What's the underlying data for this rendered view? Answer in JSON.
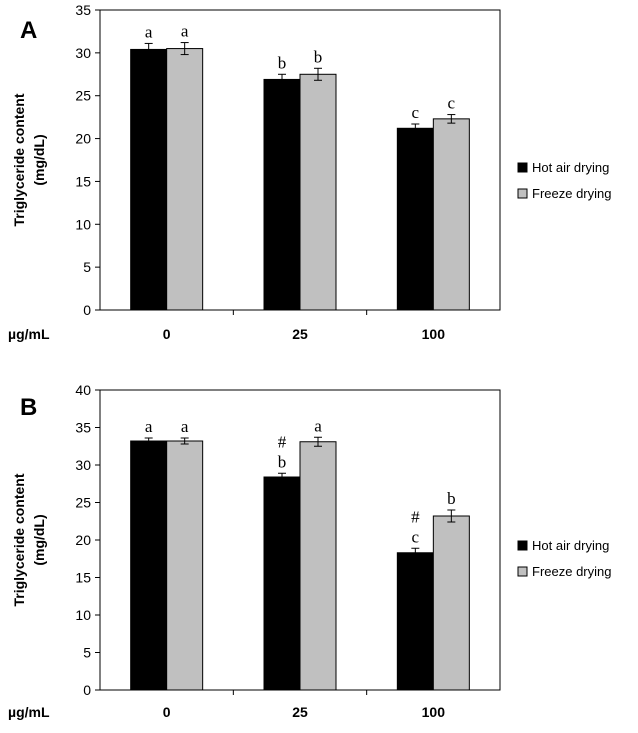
{
  "chart_data": [
    {
      "type": "bar",
      "panel_label": "A",
      "ylabel_lines": [
        "Triglyceride content",
        "(mg/dL)"
      ],
      "x_unit_label": "µg/mL",
      "categories": [
        "0",
        "25",
        "100"
      ],
      "ylim": [
        0,
        35
      ],
      "yticks": [
        "0",
        "5",
        "10",
        "15",
        "20",
        "25",
        "30",
        "35"
      ],
      "legend_position": "right",
      "series": [
        {
          "name": "Hot air drying",
          "color": "#000000",
          "values": [
            30.4,
            26.9,
            21.2
          ],
          "errors": [
            0.7,
            0.6,
            0.5
          ],
          "labels": [
            "a",
            "b",
            "c"
          ],
          "marks": [
            "",
            "",
            ""
          ]
        },
        {
          "name": "Freeze drying",
          "color": "#c0c0c0",
          "values": [
            30.5,
            27.5,
            22.3
          ],
          "errors": [
            0.7,
            0.7,
            0.5
          ],
          "labels": [
            "a",
            "b",
            "c"
          ],
          "marks": [
            "",
            "",
            ""
          ]
        }
      ]
    },
    {
      "type": "bar",
      "panel_label": "B",
      "ylabel_lines": [
        "Triglyceride content",
        "(mg/dL)"
      ],
      "x_unit_label": "µg/mL",
      "categories": [
        "0",
        "25",
        "100"
      ],
      "ylim": [
        0,
        40
      ],
      "yticks": [
        "0",
        "5",
        "10",
        "15",
        "20",
        "25",
        "30",
        "35",
        "40"
      ],
      "legend_position": "right",
      "series": [
        {
          "name": "Hot air drying",
          "color": "#000000",
          "values": [
            33.2,
            28.4,
            18.3
          ],
          "errors": [
            0.4,
            0.5,
            0.6
          ],
          "labels": [
            "a",
            "b",
            "c"
          ],
          "marks": [
            "",
            "#",
            "#"
          ]
        },
        {
          "name": "Freeze drying",
          "color": "#c0c0c0",
          "values": [
            33.2,
            33.1,
            23.2
          ],
          "errors": [
            0.4,
            0.6,
            0.8
          ],
          "labels": [
            "a",
            "a",
            "b"
          ],
          "marks": [
            "",
            "",
            ""
          ]
        }
      ]
    }
  ]
}
